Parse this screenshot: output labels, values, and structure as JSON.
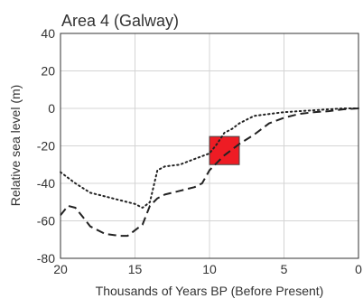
{
  "chart_data": {
    "type": "line",
    "title": "Area 4 (Galway)",
    "xlabel": "Thousands of Years BP (Before Present)",
    "ylabel": "Relative sea level (m)",
    "xlim": [
      20,
      0
    ],
    "ylim": [
      -80,
      40
    ],
    "xticks": [
      20,
      15,
      10,
      5,
      0
    ],
    "yticks": [
      40,
      20,
      0,
      -20,
      -40,
      -60,
      -80
    ],
    "grid": true,
    "legend": "none",
    "series": [
      {
        "style": "dotted",
        "color": "#222222",
        "x": [
          20,
          19,
          18,
          17,
          16,
          15,
          14.5,
          14,
          13.5,
          13,
          12,
          11,
          10,
          9.5,
          9,
          8.5,
          8,
          7.5,
          7,
          6,
          5,
          4,
          3,
          2,
          1,
          0
        ],
        "y": [
          -34,
          -40,
          -45,
          -47,
          -49,
          -51,
          -53,
          -50,
          -33,
          -31,
          -30,
          -27,
          -24,
          -19,
          -13,
          -11,
          -8,
          -6,
          -4,
          -3,
          -2,
          -1.5,
          -1,
          -0.5,
          0,
          0
        ]
      },
      {
        "style": "dashed",
        "color": "#222222",
        "x": [
          20,
          19.5,
          19,
          18.5,
          18,
          17,
          16,
          15.5,
          15,
          14.5,
          14,
          13.5,
          13,
          12,
          11,
          10.5,
          10,
          9,
          8,
          7,
          6,
          5,
          4,
          3,
          2,
          1,
          0
        ],
        "y": [
          -57,
          -52,
          -53,
          -58,
          -63,
          -67,
          -68,
          -68,
          -65,
          -62,
          -52,
          -48,
          -46,
          -44,
          -42,
          -40,
          -33,
          -25,
          -19,
          -14,
          -8,
          -5,
          -3,
          -2,
          -1.5,
          -0.5,
          0
        ]
      }
    ],
    "annotations": [
      {
        "type": "rectangle",
        "color": "#ee1c24",
        "x_range": [
          10,
          8
        ],
        "y_range": [
          -30,
          -15
        ]
      }
    ]
  }
}
